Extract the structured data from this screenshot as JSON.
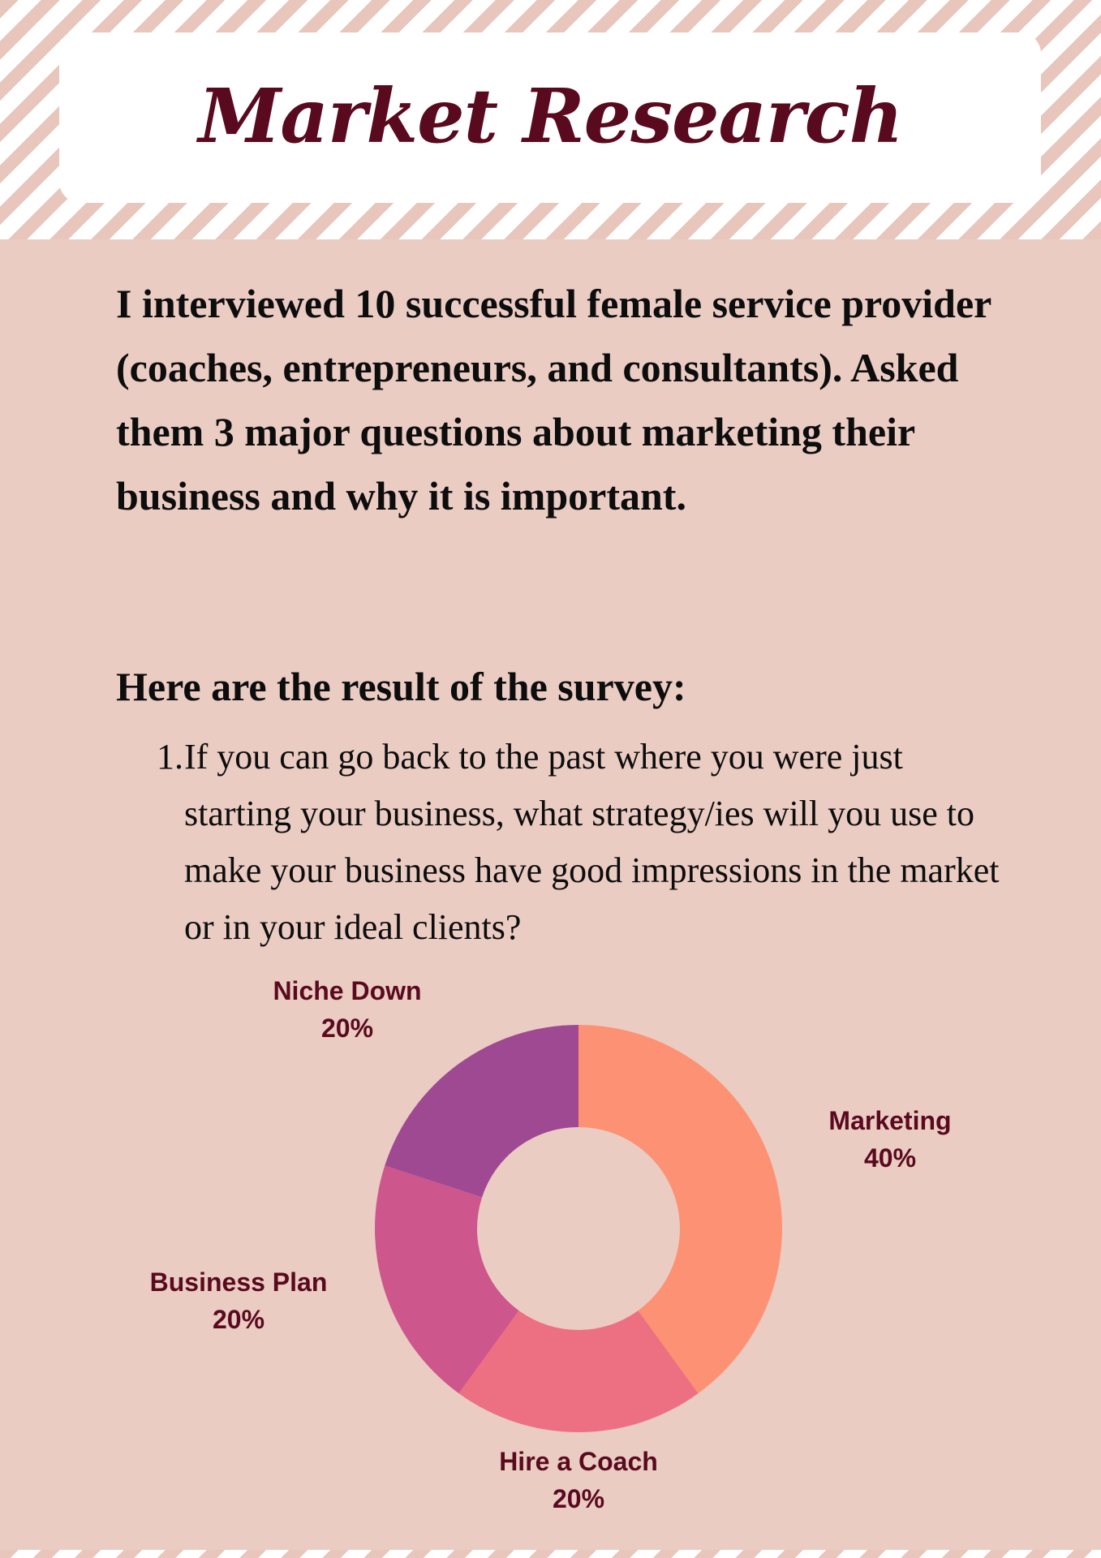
{
  "title": "Market Research",
  "intro": "I interviewed 10 successful female service provider (coaches, entrepreneurs, and consultants). Asked them 3 major questions about marketing their business and why it is important.",
  "survey_heading": "Here are the result of the survey:",
  "question": {
    "number": "1.",
    "text": "If you can go back to the past where you were just starting your business, what strategy/ies will you use to make your business have good impressions in the market or in your ideal clients?"
  },
  "chart_data": {
    "type": "pie",
    "title": "",
    "categories": [
      "Marketing",
      "Hire a Coach",
      "Business Plan",
      "Niche Down"
    ],
    "values": [
      40,
      20,
      20,
      20
    ],
    "value_labels": [
      "40%",
      "20%",
      "20%",
      "20%"
    ],
    "colors": [
      "#fd9173",
      "#ec7081",
      "#cd568d",
      "#9f4992"
    ],
    "donut": true,
    "start": "12 o'clock, clockwise",
    "legend": "none (labels placed outside slices)"
  }
}
